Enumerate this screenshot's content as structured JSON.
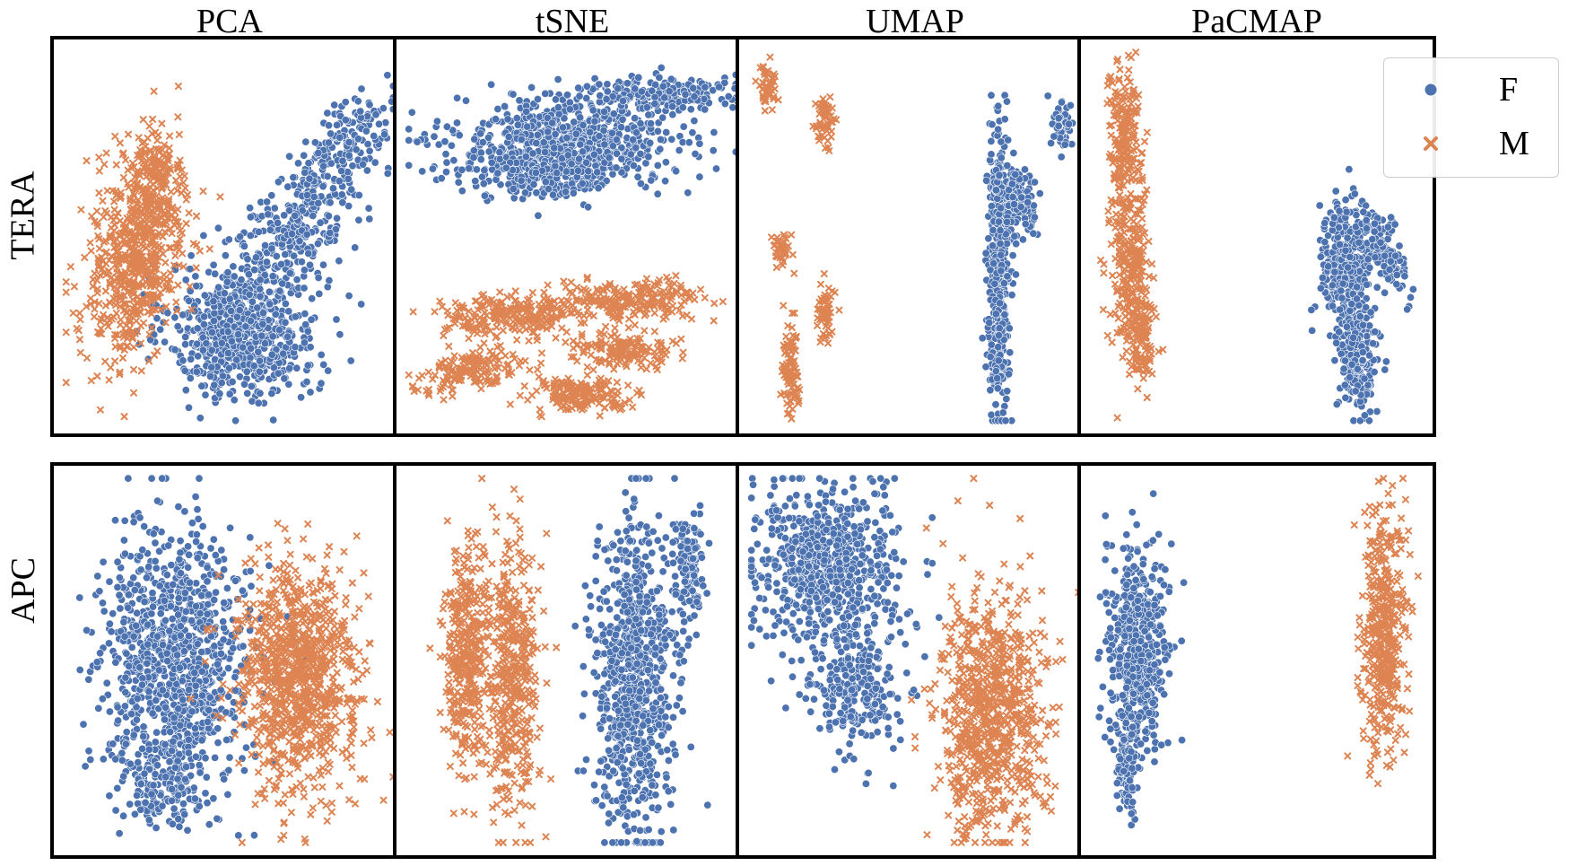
{
  "colors": {
    "F": "#4c72b0",
    "M": "#dd8452"
  },
  "col_titles": [
    "PCA",
    "tSNE",
    "UMAP",
    "PaCMAP"
  ],
  "row_labels": [
    "TERA",
    "APC"
  ],
  "legend": {
    "items": [
      {
        "label": "F",
        "marker": "circle"
      },
      {
        "label": "M",
        "marker": "x"
      }
    ]
  },
  "chart_data": [
    {
      "type": "scatter",
      "title": "PCA",
      "row": "TERA",
      "xlim": [
        0,
        100
      ],
      "ylim": [
        0,
        100
      ],
      "series": [
        {
          "name": "F",
          "marker": "circle",
          "clusters": [
            {
              "cx": 54,
              "cy": 25,
              "sx": 11,
              "sy": 9,
              "n": 700
            },
            {
              "cx": 72,
              "cy": 55,
              "sx": 6,
              "sy": 14,
              "rot": -40,
              "n": 350
            },
            {
              "cx": 87,
              "cy": 78,
              "sx": 4,
              "sy": 8,
              "rot": -45,
              "n": 90
            }
          ]
        },
        {
          "name": "M",
          "marker": "x",
          "clusters": [
            {
              "cx": 22,
              "cy": 45,
              "sx": 7,
              "sy": 14,
              "rot": -10,
              "n": 650
            },
            {
              "cx": 28,
              "cy": 65,
              "sx": 4,
              "sy": 7,
              "n": 120
            }
          ]
        }
      ]
    },
    {
      "type": "scatter",
      "title": "tSNE",
      "row": "TERA",
      "xlim": [
        0,
        100
      ],
      "ylim": [
        0,
        100
      ],
      "series": [
        {
          "name": "F",
          "marker": "circle",
          "clusters": [
            {
              "cx": 48,
              "cy": 75,
              "sx": 17,
              "sy": 6,
              "n": 700
            },
            {
              "cx": 75,
              "cy": 88,
              "sx": 11,
              "sy": 2.5,
              "n": 200
            },
            {
              "cx": 42,
              "cy": 66,
              "sx": 9,
              "sy": 3.5,
              "n": 160
            }
          ]
        },
        {
          "name": "M",
          "marker": "x",
          "clusters": [
            {
              "cx": 30,
              "cy": 29,
              "sx": 10,
              "sy": 2.7,
              "n": 230
            },
            {
              "cx": 69,
              "cy": 33,
              "sx": 11,
              "sy": 2.5,
              "n": 230
            },
            {
              "cx": 65,
              "cy": 20,
              "sx": 8,
              "sy": 2.2,
              "n": 150
            },
            {
              "cx": 20,
              "cy": 15,
              "sx": 8,
              "sy": 2.5,
              "rot": 10,
              "n": 160
            },
            {
              "cx": 53,
              "cy": 8,
              "sx": 8,
              "sy": 2.2,
              "n": 170
            }
          ]
        }
      ]
    },
    {
      "type": "scatter",
      "title": "UMAP",
      "row": "TERA",
      "xlim": [
        0,
        100
      ],
      "ylim": [
        0,
        100
      ],
      "series": [
        {
          "name": "F",
          "marker": "circle",
          "clusters": [
            {
              "cx": 75,
              "cy": 38,
              "sx": 1.7,
              "sy": 18,
              "n": 420
            },
            {
              "cx": 80,
              "cy": 60,
              "sx": 3.2,
              "sy": 5,
              "n": 160
            },
            {
              "cx": 94,
              "cy": 80,
              "sx": 1.4,
              "sy": 3,
              "n": 60
            }
          ]
        },
        {
          "name": "M",
          "marker": "x",
          "clusters": [
            {
              "cx": 6,
              "cy": 89,
              "sx": 1.3,
              "sy": 3.5,
              "n": 50
            },
            {
              "cx": 23,
              "cy": 80,
              "sx": 1.4,
              "sy": 3.5,
              "n": 60
            },
            {
              "cx": 10,
              "cy": 47,
              "sx": 1.2,
              "sy": 2.6,
              "n": 40
            },
            {
              "cx": 23,
              "cy": 30,
              "sx": 1.5,
              "sy": 3.5,
              "n": 60
            },
            {
              "cx": 13,
              "cy": 14,
              "sx": 1.3,
              "sy": 7,
              "n": 90
            }
          ]
        }
      ]
    },
    {
      "type": "scatter",
      "title": "PaCMAP",
      "row": "TERA",
      "xlim": [
        0,
        100
      ],
      "ylim": [
        0,
        100
      ],
      "series": [
        {
          "name": "F",
          "marker": "circle",
          "clusters": [
            {
              "cx": 77,
              "cy": 44,
              "sx": 4,
              "sy": 8,
              "n": 320
            },
            {
              "cx": 80,
              "cy": 20,
              "sx": 3,
              "sy": 8,
              "n": 220
            },
            {
              "cx": 89,
              "cy": 45,
              "sx": 2.2,
              "sy": 7,
              "rot": 25,
              "n": 110
            }
          ]
        },
        {
          "name": "M",
          "marker": "x",
          "clusters": [
            {
              "cx": 10,
              "cy": 75,
              "sx": 2.5,
              "sy": 10,
              "n": 200
            },
            {
              "cx": 12,
              "cy": 40,
              "sx": 3,
              "sy": 12,
              "n": 260
            },
            {
              "cx": 16,
              "cy": 22,
              "sx": 2,
              "sy": 6,
              "n": 80
            }
          ]
        }
      ]
    },
    {
      "type": "scatter",
      "title": "PCA",
      "row": "APC",
      "xlim": [
        0,
        100
      ],
      "ylim": [
        0,
        100
      ],
      "series": [
        {
          "name": "F",
          "marker": "circle",
          "clusters": [
            {
              "cx": 33,
              "cy": 50,
              "sx": 11,
              "sy": 17,
              "n": 1000
            },
            {
              "cx": 30,
              "cy": 16,
              "sx": 6,
              "sy": 5,
              "n": 120
            }
          ]
        },
        {
          "name": "M",
          "marker": "x",
          "clusters": [
            {
              "cx": 70,
              "cy": 45,
              "sx": 9,
              "sy": 15,
              "n": 950
            }
          ]
        }
      ]
    },
    {
      "type": "scatter",
      "title": "tSNE",
      "row": "APC",
      "xlim": [
        0,
        100
      ],
      "ylim": [
        0,
        100
      ],
      "series": [
        {
          "name": "F",
          "marker": "circle",
          "clusters": [
            {
              "cx": 68,
              "cy": 45,
              "sx": 6,
              "sy": 22,
              "n": 800
            },
            {
              "cx": 85,
              "cy": 75,
              "sx": 2.5,
              "sy": 8,
              "n": 120
            }
          ]
        },
        {
          "name": "M",
          "marker": "x",
          "clusters": [
            {
              "cx": 18,
              "cy": 52,
              "sx": 3.5,
              "sy": 16,
              "n": 380
            },
            {
              "cx": 32,
              "cy": 45,
              "sx": 4,
              "sy": 18,
              "n": 420
            }
          ]
        }
      ]
    },
    {
      "type": "scatter",
      "title": "UMAP",
      "row": "APC",
      "xlim": [
        0,
        100
      ],
      "ylim": [
        0,
        100
      ],
      "series": [
        {
          "name": "F",
          "marker": "circle",
          "clusters": [
            {
              "cx": 24,
              "cy": 75,
              "sx": 11,
              "sy": 11,
              "n": 700
            },
            {
              "cx": 31,
              "cy": 42,
              "sx": 7,
              "sy": 8,
              "n": 250
            }
          ]
        },
        {
          "name": "M",
          "marker": "x",
          "clusters": [
            {
              "cx": 73,
              "cy": 35,
              "sx": 8,
              "sy": 17,
              "n": 800
            }
          ]
        }
      ]
    },
    {
      "type": "scatter",
      "title": "PaCMAP",
      "row": "APC",
      "xlim": [
        0,
        100
      ],
      "ylim": [
        0,
        100
      ],
      "series": [
        {
          "name": "F",
          "marker": "circle",
          "clusters": [
            {
              "cx": 14,
              "cy": 54,
              "sx": 4.5,
              "sy": 13,
              "n": 500
            },
            {
              "cx": 11,
              "cy": 22,
              "sx": 1.6,
              "sy": 8,
              "n": 100
            }
          ]
        },
        {
          "name": "M",
          "marker": "x",
          "clusters": [
            {
              "cx": 88,
              "cy": 58,
              "sx": 3.2,
              "sy": 16,
              "n": 420
            }
          ]
        }
      ]
    }
  ]
}
